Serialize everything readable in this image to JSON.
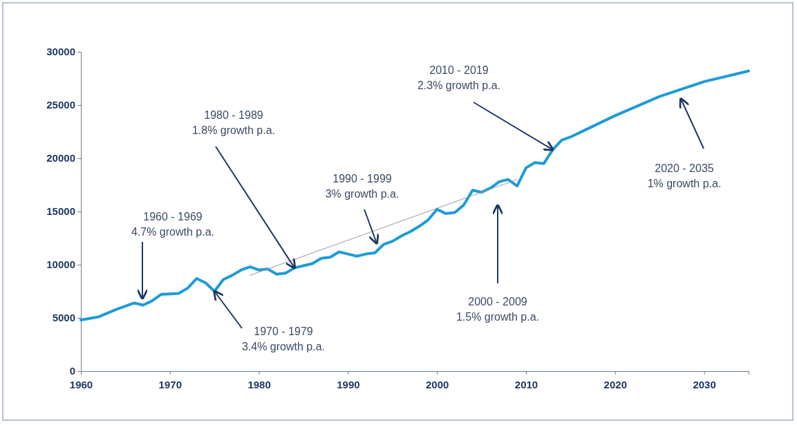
{
  "chart_data": {
    "type": "line",
    "xlim": [
      1960,
      2035
    ],
    "xticks": [
      1960,
      1970,
      1980,
      1990,
      2000,
      2010,
      2020,
      2030
    ],
    "ylim": [
      0,
      30000
    ],
    "yticks": [
      0,
      5000,
      10000,
      15000,
      20000,
      25000,
      30000
    ],
    "grid": false,
    "series": [
      {
        "color": "#1e9bd7",
        "x": [
          1960,
          1962,
          1964,
          1966,
          1967,
          1968,
          1969,
          1971,
          1972,
          1973,
          1974,
          1975,
          1976,
          1977,
          1978,
          1979,
          1980,
          1981,
          1982,
          1983,
          1984,
          1985,
          1986,
          1987,
          1988,
          1989,
          1990,
          1991,
          1992,
          1993,
          1994,
          1995,
          1996,
          1997,
          1998,
          1999,
          2000,
          2001,
          2002,
          2003,
          2004,
          2005,
          2006,
          2007,
          2008,
          2009,
          2010,
          2011,
          2012,
          2013,
          2014,
          2015,
          2017,
          2020,
          2025,
          2030,
          2035
        ],
        "values": [
          4800,
          5100,
          5800,
          6400,
          6200,
          6600,
          7200,
          7300,
          7800,
          8700,
          8300,
          7500,
          8600,
          9000,
          9500,
          9800,
          9500,
          9600,
          9100,
          9200,
          9700,
          9900,
          10100,
          10600,
          10700,
          11200,
          11000,
          10800,
          11000,
          11100,
          11900,
          12200,
          12700,
          13100,
          13600,
          14200,
          15200,
          14800,
          14900,
          15600,
          17000,
          16800,
          17200,
          17800,
          18000,
          17400,
          19100,
          19600,
          19500,
          20800,
          21700,
          22000,
          22800,
          24000,
          25800,
          27200,
          28200
        ]
      },
      {
        "type": "line",
        "color": "#999999",
        "x": [
          1979,
          2009
        ],
        "values": [
          9000,
          18000
        ]
      }
    ],
    "annotations": [
      "1960 - 1969\n4.7% growth p.a.",
      {
        "text": "1970 - 1979\n3.4% growth p.a.",
        "x": 1975,
        "y": 7500
      },
      {
        "text": "1980 - 1989\n1.8% growth p.a.",
        "x": 1984,
        "y": 9700
      },
      "1990 - 1999\n3% growth p.a.",
      "2000 - 2009\n1.5% growth p.a.",
      {
        "text": "2010 - 2019\n2.3% growth p.a.",
        "x": 2013,
        "y": 20800
      },
      "2020 - 2035\n1% growth p.a."
    ]
  }
}
